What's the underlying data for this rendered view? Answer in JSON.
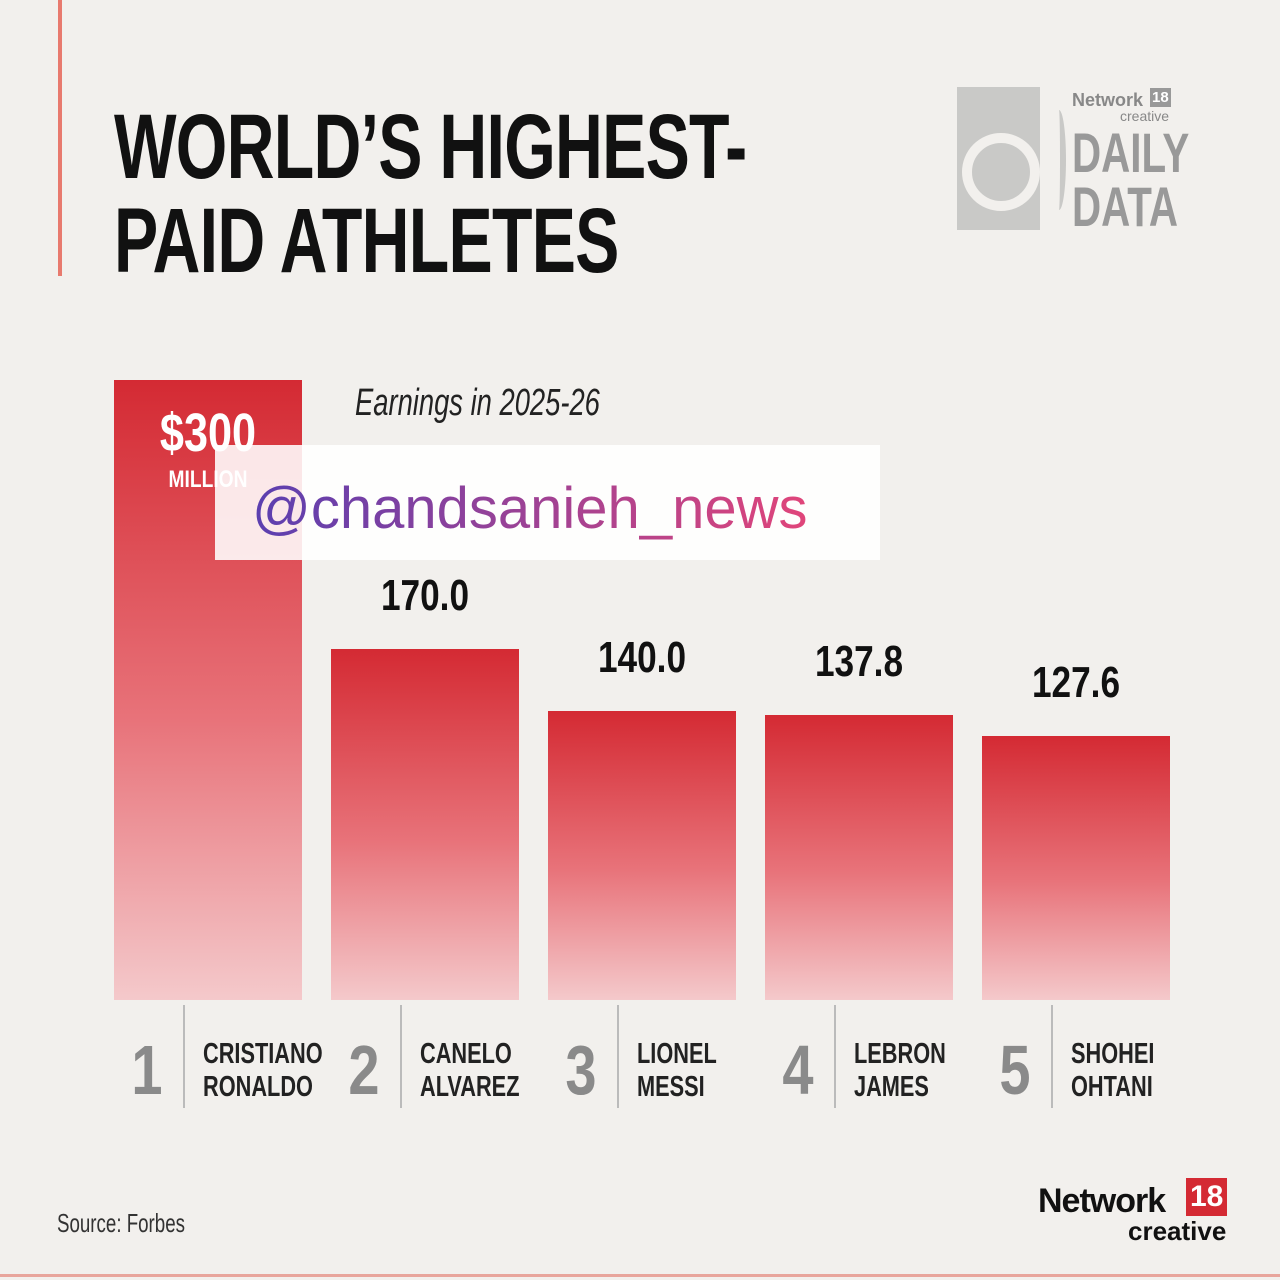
{
  "chart_data": {
    "type": "bar",
    "title": "WORLD’S HIGHEST-PAID ATHLETES",
    "subtitle": "Earnings in 2025-26",
    "categories": [
      "CRISTIANO RONALDO",
      "CANELO ALVAREZ",
      "LIONEL MESSI",
      "LEBRON JAMES",
      "SHOHEI OHTANI"
    ],
    "ranks": [
      1,
      2,
      3,
      4,
      5
    ],
    "values": [
      300,
      170.0,
      140.0,
      137.8,
      127.6
    ],
    "value_labels": [
      "$300",
      "170.0",
      "140.0",
      "137.8",
      "127.6"
    ],
    "value_unit_label": "MILLION",
    "color": "#d42a33",
    "source": "Source: Forbes"
  },
  "branding": {
    "top_logo": {
      "network": "Network",
      "number": "18",
      "creative": "creative",
      "line1": "DAILY",
      "line2": "DATA"
    },
    "bottom_logo": {
      "network": "Network",
      "number": "18",
      "creative": "creative"
    },
    "watermark": "@chandsanieh_news"
  }
}
